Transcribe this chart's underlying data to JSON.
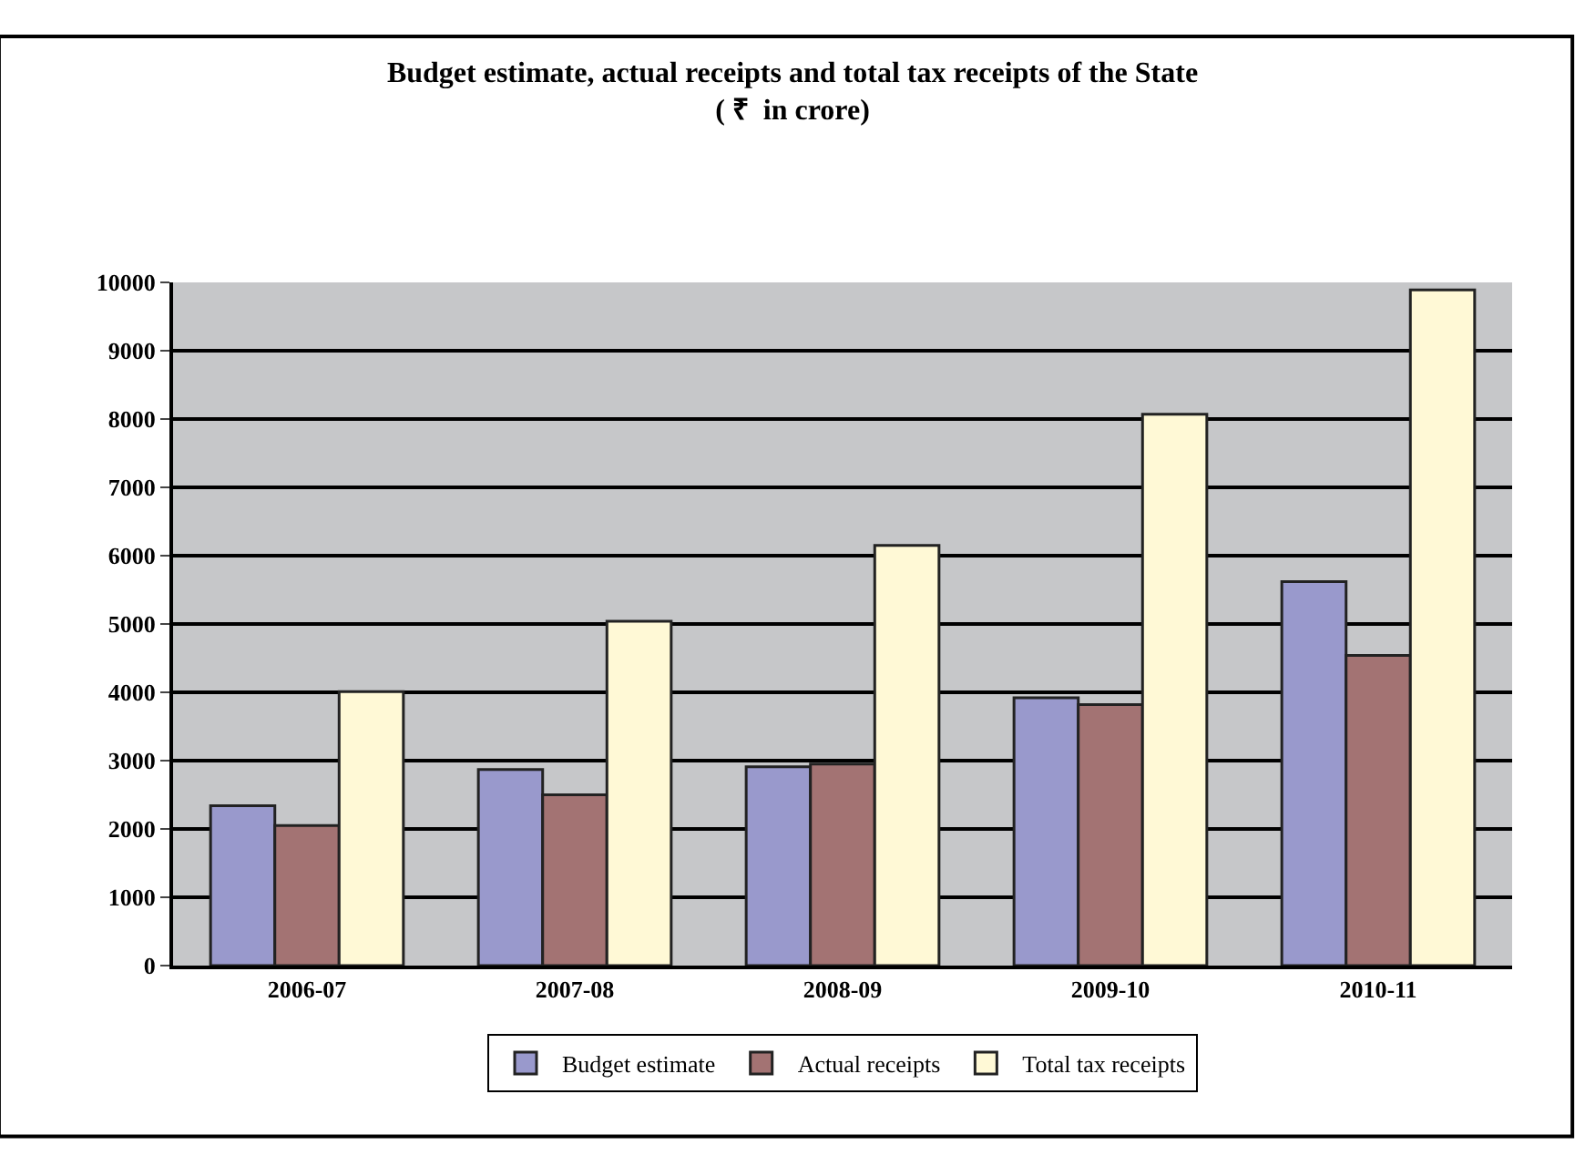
{
  "chart_data": {
    "type": "bar",
    "title": "Budget estimate, actual receipts and total tax receipts of the State",
    "subtitle": "( ₹  in crore)",
    "categories": [
      "2006-07",
      "2007-08",
      "2008-09",
      "2009-10",
      "2010-11"
    ],
    "series": [
      {
        "name": "Budget estimate",
        "color": "#9999cc",
        "values": [
          2340,
          2870,
          2910,
          3920,
          5620
        ]
      },
      {
        "name": "Actual receipts",
        "color": "#a37373",
        "values": [
          2050,
          2500,
          2950,
          3820,
          4540
        ]
      },
      {
        "name": "Total tax receipts",
        "color": "#fff9d6",
        "values": [
          4010,
          5040,
          6150,
          8070,
          9890
        ]
      }
    ],
    "ylim": [
      0,
      10000
    ],
    "yticks": [
      0,
      1000,
      2000,
      3000,
      4000,
      5000,
      6000,
      7000,
      8000,
      9000,
      10000
    ],
    "grid": "y",
    "legend": "bottom"
  }
}
